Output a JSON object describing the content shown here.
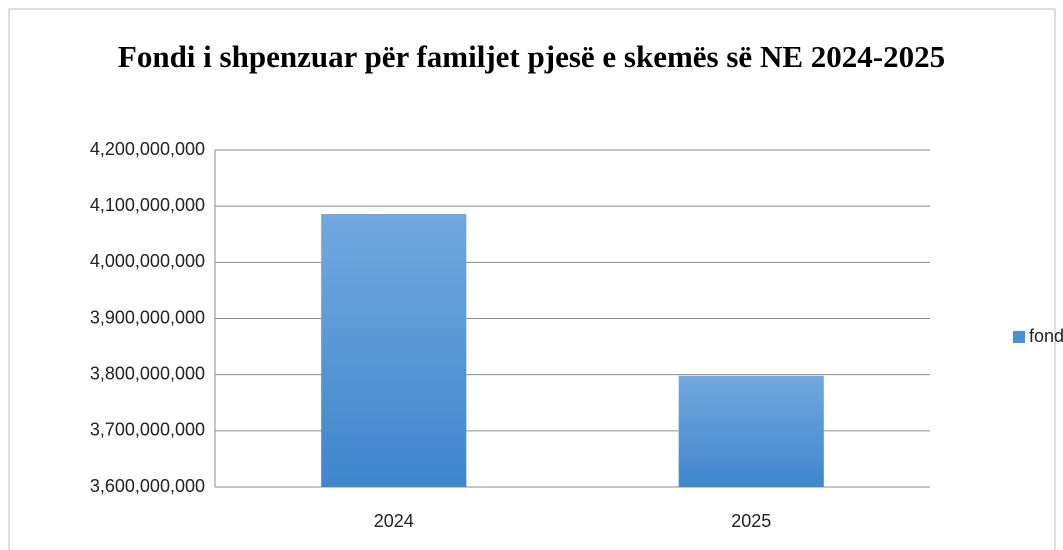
{
  "chart_data": {
    "type": "bar",
    "title": "Fondi i shpenzuar për familjet pjesë e skemës së NE 2024-2025",
    "categories": [
      "2024",
      "2025"
    ],
    "series": [
      {
        "name": "fondi",
        "color": "#4a8fd6",
        "values": [
          4086000000,
          3798000000
        ]
      }
    ],
    "ylim": [
      3600000000,
      4200000000
    ],
    "yticks": [
      {
        "value": 3600000000,
        "label": "3,600,000,000"
      },
      {
        "value": 3700000000,
        "label": "3,700,000,000"
      },
      {
        "value": 3800000000,
        "label": "3,800,000,000"
      },
      {
        "value": 3900000000,
        "label": "3,900,000,000"
      },
      {
        "value": 4000000000,
        "label": "4,000,000,000"
      },
      {
        "value": 4100000000,
        "label": "4,100,000,000"
      },
      {
        "value": 4200000000,
        "label": "4,200,000,000"
      }
    ],
    "grid": true,
    "legend": "right"
  }
}
